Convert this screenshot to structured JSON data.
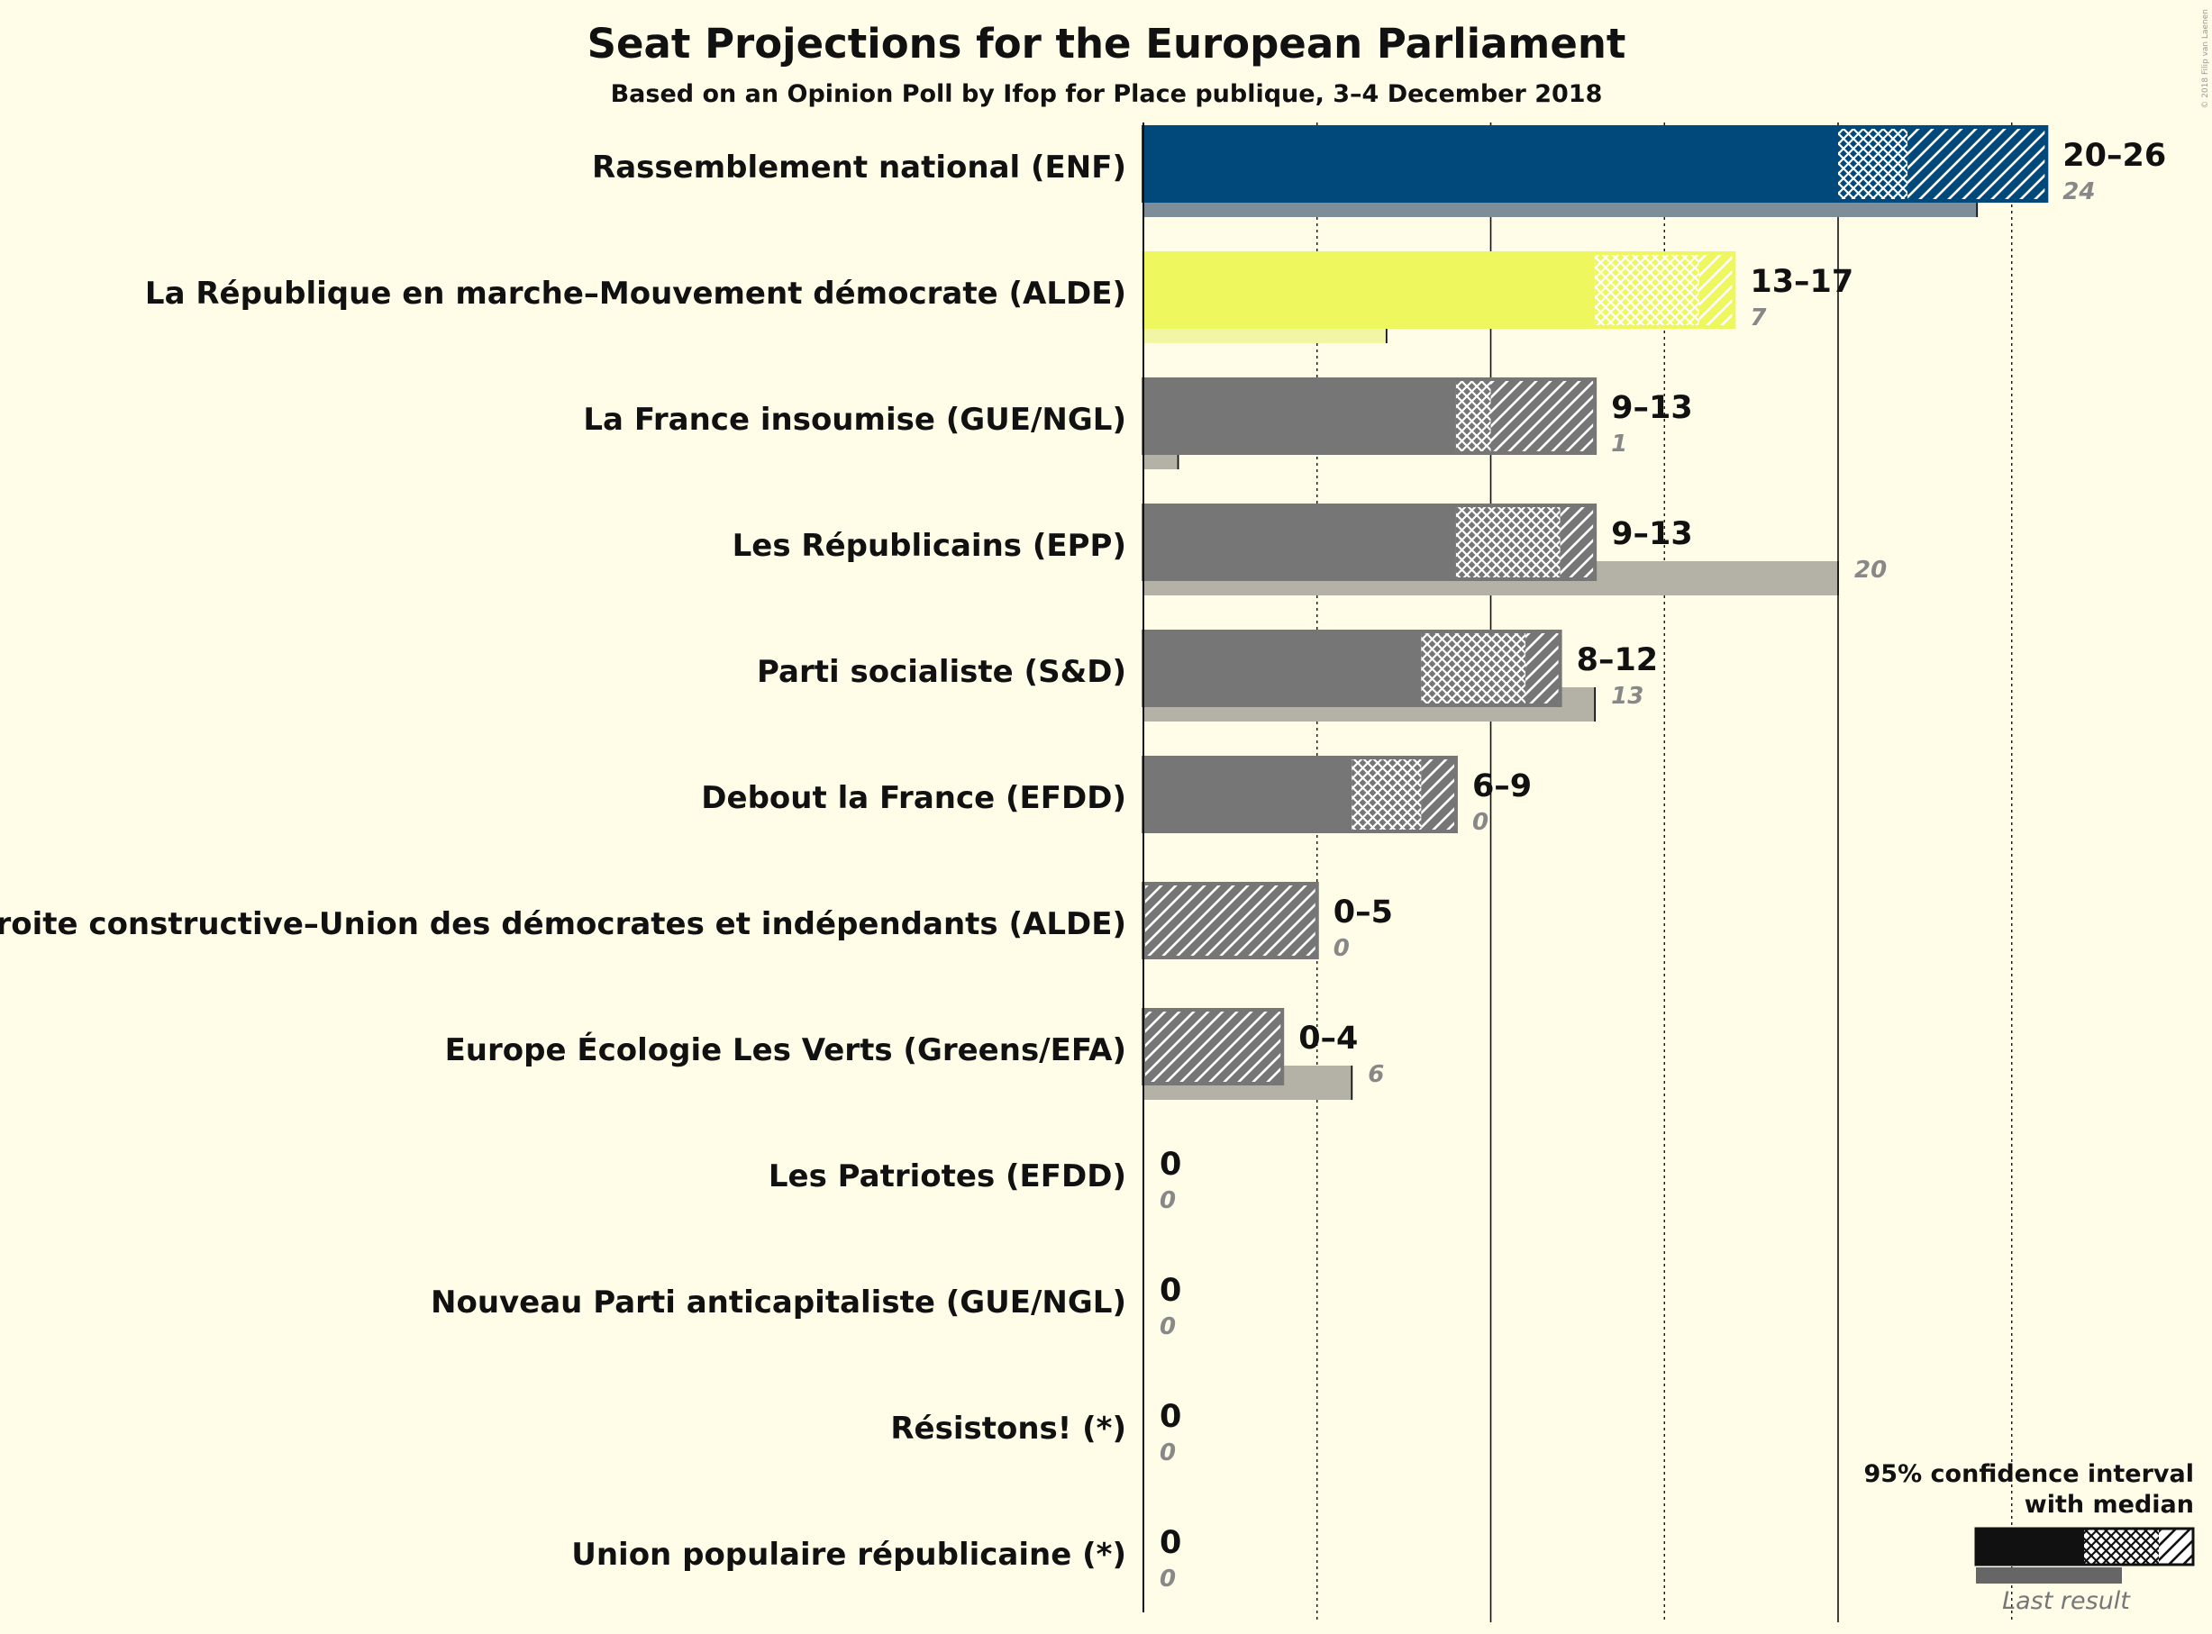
{
  "chart_data": {
    "type": "bar",
    "title": "Seat Projections for the European Parliament",
    "subtitle": "Based on an Opinion Poll by Ifop for Place publique, 3–4 December 2018",
    "xlim": [
      0,
      26
    ],
    "gridlines": [
      5,
      10,
      15,
      20,
      25
    ],
    "parties": [
      {
        "name": "Rassemblement national (ENF)",
        "low": 20,
        "median": 22,
        "high": 26,
        "range": "20–26",
        "last": 24,
        "last_label": "24",
        "color": "#00497a",
        "pale": "#7d8e98"
      },
      {
        "name": "La République en marche–Mouvement démocrate (ALDE)",
        "low": 13,
        "median": 16,
        "high": 17,
        "range": "13–17",
        "last": 7,
        "last_label": "7",
        "color": "#eef75e",
        "pale": "#f2f6a4"
      },
      {
        "name": "La France insoumise (GUE/NGL)",
        "low": 9,
        "median": 10,
        "high": 13,
        "range": "9–13",
        "last": 1,
        "last_label": "1",
        "color": "#767676",
        "pale": "#b4b1a6"
      },
      {
        "name": "Les Républicains (EPP)",
        "low": 9,
        "median": 12,
        "high": 13,
        "range": "9–13",
        "last": 20,
        "last_label": "20",
        "color": "#767676",
        "pale": "#b4b1a6"
      },
      {
        "name": "Parti socialiste (S&D)",
        "low": 8,
        "median": 11,
        "high": 12,
        "range": "8–12",
        "last": 13,
        "last_label": "13",
        "color": "#767676",
        "pale": "#b4b1a6"
      },
      {
        "name": "Debout la France (EFDD)",
        "low": 6,
        "median": 8,
        "high": 9,
        "range": "6–9",
        "last": 0,
        "last_label": "0",
        "color": "#767676",
        "pale": "#b4b1a6"
      },
      {
        "name": "Agir, la droite constructive–Union des démocrates et indépendants (ALDE)",
        "low": 0,
        "median": 0,
        "high": 5,
        "range": "0–5",
        "last": 0,
        "last_label": "0",
        "color": "#767676",
        "pale": "#b4b1a6"
      },
      {
        "name": "Europe Écologie Les Verts (Greens/EFA)",
        "low": 0,
        "median": 0,
        "high": 4,
        "range": "0–4",
        "last": 6,
        "last_label": "6",
        "color": "#767676",
        "pale": "#b4b1a6"
      },
      {
        "name": "Les Patriotes (EFDD)",
        "low": 0,
        "median": 0,
        "high": 0,
        "range": "0",
        "last": 0,
        "last_label": "0",
        "color": "#767676",
        "pale": "#b4b1a6"
      },
      {
        "name": "Nouveau Parti anticapitaliste (GUE/NGL)",
        "low": 0,
        "median": 0,
        "high": 0,
        "range": "0",
        "last": 0,
        "last_label": "0",
        "color": "#767676",
        "pale": "#b4b1a6"
      },
      {
        "name": "Résistons! (*)",
        "low": 0,
        "median": 0,
        "high": 0,
        "range": "0",
        "last": 0,
        "last_label": "0",
        "color": "#767676",
        "pale": "#b4b1a6"
      },
      {
        "name": "Union populaire républicaine (*)",
        "low": 0,
        "median": 0,
        "high": 0,
        "range": "0",
        "last": 0,
        "last_label": "0",
        "color": "#767676",
        "pale": "#b4b1a6"
      }
    ],
    "legend": {
      "line1": "95% confidence interval",
      "line2": "with median",
      "last_result": "Last result"
    },
    "copyright": "© 2018 Filip van Laenen"
  }
}
